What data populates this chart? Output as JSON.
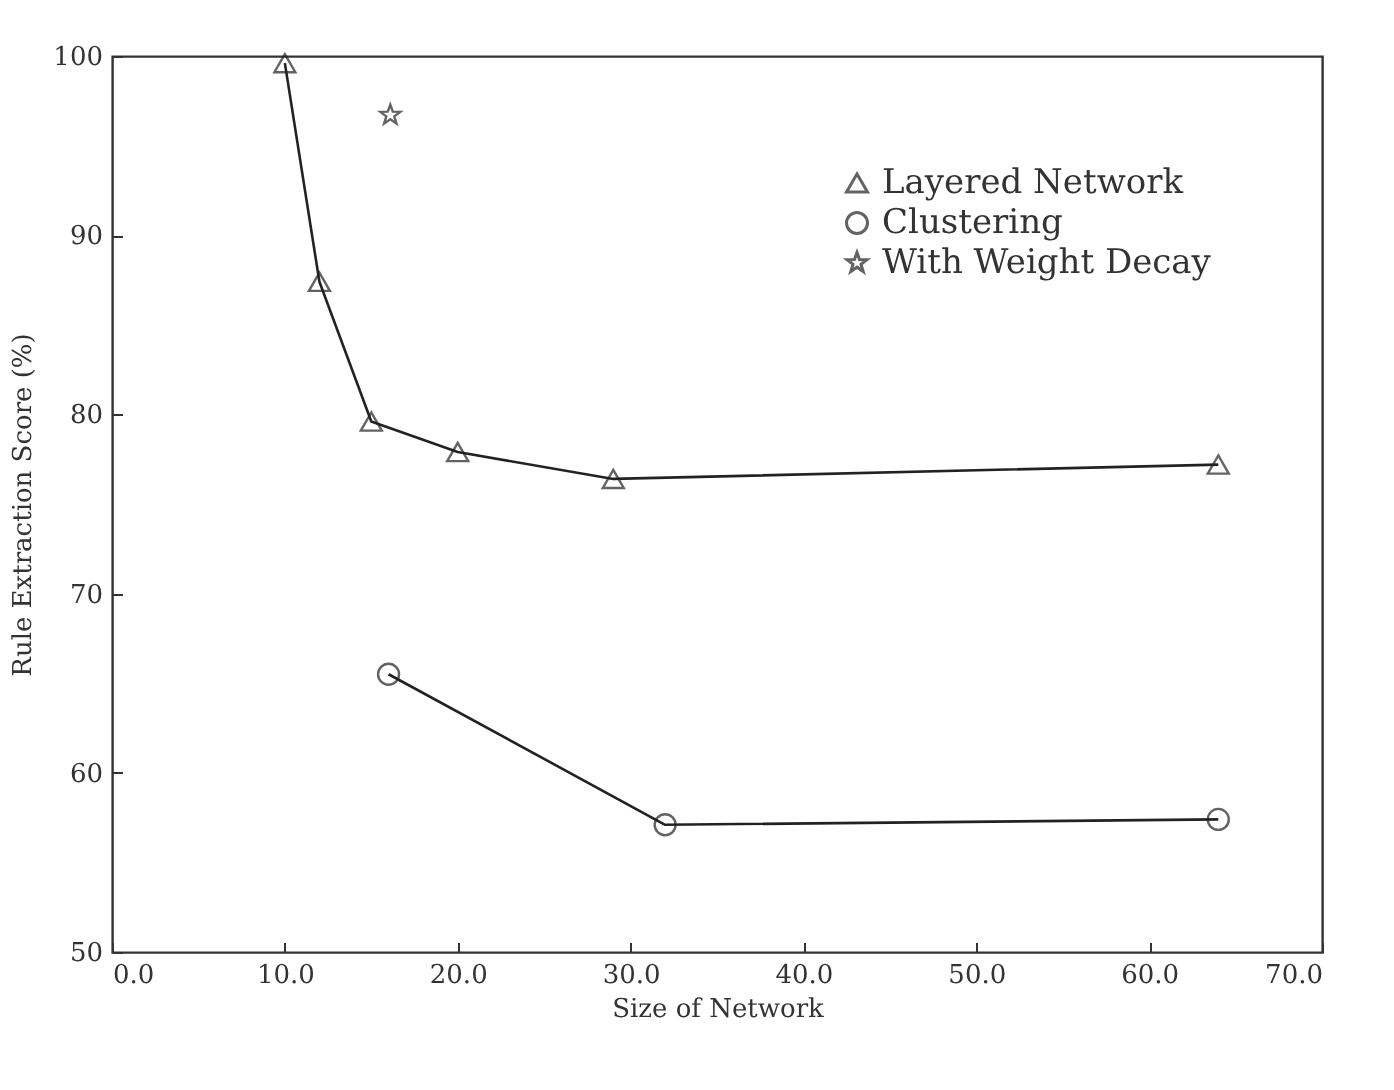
{
  "chart_data": {
    "type": "line",
    "xlabel": "Size of Network",
    "ylabel": "Rule Extraction Score (%)",
    "xlim": [
      0,
      70
    ],
    "ylim": [
      50,
      100
    ],
    "xticks": [
      {
        "value": 0,
        "label": "0.0"
      },
      {
        "value": 10,
        "label": "10.0"
      },
      {
        "value": 20,
        "label": "20.0"
      },
      {
        "value": 30,
        "label": "30.0"
      },
      {
        "value": 40,
        "label": "40.0"
      },
      {
        "value": 50,
        "label": "50.0"
      },
      {
        "value": 60,
        "label": "60.0"
      },
      {
        "value": 70,
        "label": "70.0"
      }
    ],
    "yticks": [
      50,
      60,
      70,
      80,
      90,
      100
    ],
    "grid": false,
    "legend": "top right",
    "series": [
      {
        "name": "Layered Network",
        "color": "#222222",
        "type": "line",
        "marker": "triangle",
        "x": [
          10,
          12,
          15,
          20,
          29,
          64
        ],
        "values": [
          99.6,
          87.4,
          79.6,
          77.9,
          76.4,
          77.2
        ]
      },
      {
        "name": "Clustering",
        "color": "#222222",
        "type": "line",
        "marker": "circle",
        "x": [
          16,
          32,
          64
        ],
        "values": [
          65.5,
          57.1,
          57.4
        ]
      },
      {
        "name": "With Weight Decay",
        "color": "#222222",
        "type": "scatter",
        "marker": "star",
        "x": [
          16.1
        ],
        "values": [
          96.7
        ]
      }
    ]
  }
}
